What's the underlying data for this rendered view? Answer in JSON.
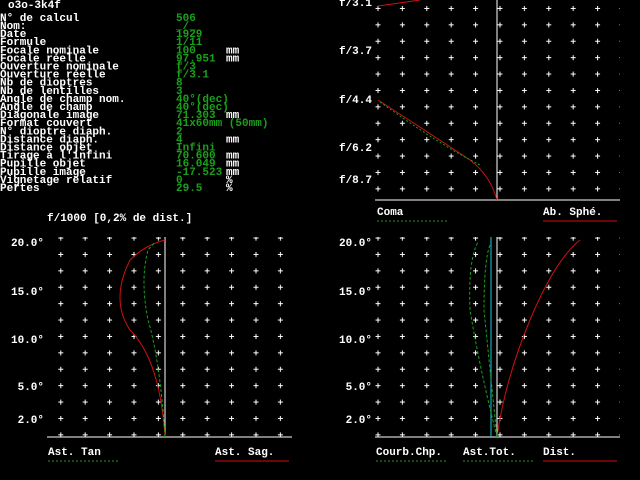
{
  "header": {
    "title": "o3o-3k4f"
  },
  "parameters": {
    "rows": [
      {
        "label": "N° de calcul",
        "value": "506"
      },
      {
        "label": "Nom:",
        "value": "_/_"
      },
      {
        "label": "Date",
        "value": "1929"
      },
      {
        "label": "Formule",
        "value": "1/11"
      },
      {
        "label": "Focale nominale",
        "value": "100",
        "unit": "mm"
      },
      {
        "label": "Focale réelle",
        "value": "97.951",
        "unit": "mm"
      },
      {
        "label": "Ouverture nominale",
        "value": "f/3"
      },
      {
        "label": "Ouverture réelle",
        "value": "f/3.1"
      },
      {
        "label": "Nb de dioptres",
        "value": "8"
      },
      {
        "label": "Nb de lentilles",
        "value": "3"
      },
      {
        "label": "Angle de champ nom.",
        "value": "40°(dec)"
      },
      {
        "label": "Angle de champ",
        "value": "40°(dec)"
      },
      {
        "label": "Diagonale image",
        "value": "71.303",
        "unit": "mm"
      },
      {
        "label": "Format couvert",
        "value": "41x60mm (50mm)"
      },
      {
        "label": "N° dioptre diaph.",
        "value": "2"
      },
      {
        "label": "Distance diaph.",
        "value": "4",
        "unit": "mm"
      },
      {
        "label": "Distance objet",
        "value": "Infini"
      },
      {
        "label": "Tirage à l'infini",
        "value": "70.600",
        "unit": "mm"
      },
      {
        "label": "Pupille objet",
        "value": "16.049",
        "unit": "mm"
      },
      {
        "label": "Pupille image",
        "value": "-17.523",
        "unit": "mm"
      },
      {
        "label": "Vignetage relatif",
        "value": "0",
        "unit": "%"
      },
      {
        "label": "Pertes",
        "value": "29.5",
        "unit": "%"
      }
    ]
  },
  "plots": [
    {
      "y_labels": [
        "f/3.1",
        "f/3.7",
        "f/4.4",
        "f/6.2",
        "f/8.7"
      ],
      "legend": [
        "Coma",
        "Ab. Sphé."
      ]
    },
    {
      "caption": "f/1000 [0,2% de dist.]",
      "y_labels": [
        "20.0°",
        "15.0°",
        "10.0°",
        "5.0°",
        "2.0°"
      ],
      "legend": [
        "Ast. Tan",
        "Ast. Sag."
      ]
    },
    {
      "y_labels": [
        "20.0°",
        "15.0°",
        "10.0°",
        "5.0°",
        "2.0°"
      ],
      "legend": [
        "Courb.Chp.",
        "Ast.Tot.",
        "Dist."
      ]
    }
  ]
}
